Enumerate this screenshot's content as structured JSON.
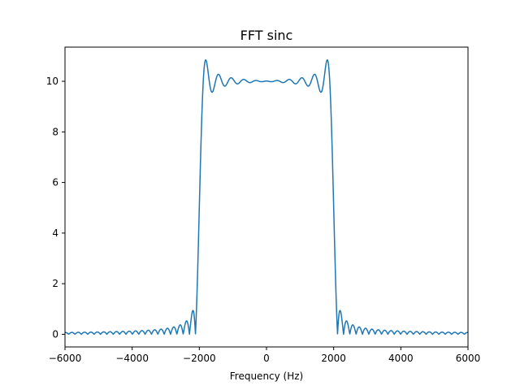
{
  "chart_data": {
    "type": "line",
    "title": "FFT sinc",
    "xlabel": "Frequency (Hz)",
    "ylabel": "",
    "xlim": [
      -6000,
      6000
    ],
    "ylim": [
      -0.5,
      11.35
    ],
    "grid": false,
    "legend": "none",
    "x_ticks": [
      -6000,
      -4000,
      -2000,
      0,
      2000,
      4000,
      6000
    ],
    "x_tick_labels": [
      "−6000",
      "−4000",
      "−2000",
      "0",
      "2000",
      "4000",
      "6000"
    ],
    "y_ticks": [
      0,
      2,
      4,
      6,
      8,
      10
    ],
    "y_tick_labels": [
      "0",
      "2",
      "4",
      "6",
      "8",
      "10"
    ],
    "series": [
      {
        "color": "#1f77b4",
        "passband_edge_hz": 2000,
        "passband_level": 10,
        "peak_value": 10.9,
        "ripple_period_hz": 190,
        "x": [
          -6000,
          -5000,
          -4000,
          -3500,
          -3000,
          -2700,
          -2500,
          -2300,
          -2200,
          -2100,
          -2050,
          -2010,
          -2000,
          -1980,
          -1950,
          -1920,
          -1890,
          -1860,
          -1830,
          -1800,
          -1700,
          -1600,
          -1500,
          -1200,
          -1000,
          -700,
          -500,
          0,
          500,
          700,
          1000,
          1200,
          1500,
          1600,
          1700,
          1800,
          1830,
          1860,
          1890,
          1920,
          1950,
          1980,
          2000,
          2010,
          2050,
          2100,
          2200,
          2300,
          2500,
          2700,
          3000,
          3500,
          4000,
          5000,
          6000
        ],
        "y": [
          0.0,
          0.02,
          0.04,
          0.06,
          0.1,
          0.14,
          0.2,
          0.35,
          0.45,
          0.7,
          0.85,
          0.1,
          3.0,
          8.0,
          10.2,
          10.9,
          10.4,
          9.5,
          9.9,
          10.35,
          10.15,
          10.12,
          10.1,
          10.1,
          10.1,
          10.08,
          10.08,
          10.05,
          10.08,
          10.08,
          10.1,
          10.1,
          10.1,
          10.12,
          10.15,
          10.35,
          9.9,
          9.5,
          10.4,
          10.9,
          10.2,
          8.0,
          3.0,
          0.1,
          0.85,
          0.7,
          0.45,
          0.35,
          0.2,
          0.14,
          0.1,
          0.06,
          0.04,
          0.02,
          0.0
        ]
      }
    ]
  }
}
